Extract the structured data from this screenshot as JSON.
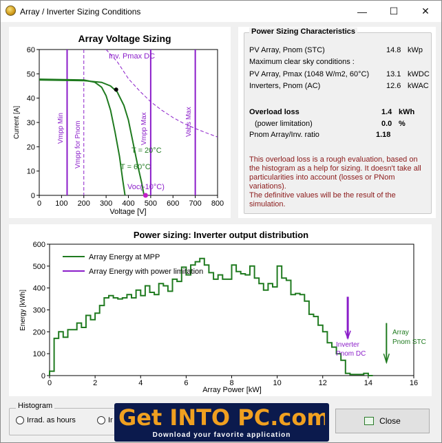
{
  "window": {
    "title": "Array / Inverter Sizing Conditions",
    "min_glyph": "—",
    "max_glyph": "☐",
    "close_glyph": "✕"
  },
  "voltage_chart": {
    "title": "Array Voltage Sizing",
    "xlabel": "Voltage [V]",
    "ylabel": "Current [A]",
    "x_ticks": [
      "0",
      "100",
      "200",
      "300",
      "400",
      "500",
      "600",
      "700",
      "800"
    ],
    "y_ticks": [
      "0",
      "10",
      "20",
      "30",
      "40",
      "50",
      "60"
    ],
    "label_inv_pmax": "Inv. Pmax DC",
    "label_vmpp_min": "Vmpp Min",
    "label_vmpp_for_pnom": "Vmpp for Pnom",
    "label_vmpp_max": "Vmpp Max",
    "label_vabs_max": "Vabs Max",
    "label_t20": "T = 20°C",
    "label_t60": "T = 60°C",
    "label_voc": "Voc(-10°C)"
  },
  "characteristics": {
    "title": "Power Sizing Characteristics",
    "pv_pnom_label": "PV Array, Pnom (STC)",
    "pv_pnom_value": "14.8",
    "pv_pnom_unit": "kWp",
    "clear_sky": "Maximum clear sky conditions :",
    "pv_pmax_label": "PV Array, Pmax (1048 W/m2, 60°C)",
    "pv_pmax_value": "13.1",
    "pv_pmax_unit": "kWDC",
    "inv_pnom_label": "Inverters, Pnom (AC)",
    "inv_pnom_value": "12.6",
    "inv_pnom_unit": "kWAC",
    "overload_label": "Overload loss",
    "overload_value": "1.4",
    "overload_unit": "kWh",
    "power_lim_label": "(power limitation)",
    "power_lim_value": "0.0",
    "power_lim_unit": "%",
    "ratio_label": "Pnom Array/Inv. ratio",
    "ratio_value": "1.18",
    "note_lines": [
      "This overload loss is a rough evaluation, based on",
      "the histogram as a help for sizing. It doesn't take all",
      "particularities into account (losses or PNom",
      "variations).",
      "The definitive values will be the result of the",
      "simulation."
    ]
  },
  "histogram_chart": {
    "title": "Power sizing: Inverter output distribution",
    "xlabel": "Array Power [kW]",
    "ylabel": "Energy [kWh]",
    "legend_mpp": "Array Energy at MPP",
    "legend_limit": "Array Energy with power limitation",
    "label_inverter": "Inverter",
    "label_pnom_dc": "Pnom DC",
    "label_array": "Array",
    "label_pnom_stc": "Pnom STC",
    "x_ticks": [
      "0",
      "2",
      "4",
      "6",
      "8",
      "10",
      "12",
      "14",
      "16"
    ],
    "y_ticks": [
      "0",
      "100",
      "200",
      "300",
      "400",
      "500",
      "600"
    ]
  },
  "chart_data": [
    {
      "type": "line",
      "title": "Array Voltage Sizing",
      "xlabel": "Voltage [V]",
      "ylabel": "Current [A]",
      "xlim": [
        0,
        800
      ],
      "ylim": [
        0,
        60
      ],
      "series": [
        {
          "name": "T = 20°C",
          "x": [
            0,
            200,
            280,
            320,
            350,
            380,
            400,
            420,
            440,
            460,
            470
          ],
          "y": [
            47.5,
            47.2,
            46.5,
            45,
            42.5,
            37,
            31,
            22,
            13,
            5,
            0
          ]
        },
        {
          "name": "T = 60°C",
          "x": [
            0,
            200,
            250,
            280,
            300,
            320,
            340,
            360,
            375,
            385
          ],
          "y": [
            47.8,
            47.5,
            46.5,
            44.5,
            41,
            35,
            26,
            16,
            6,
            0
          ]
        }
      ],
      "vertical_markers": [
        {
          "name": "Vmpp Min",
          "x": 125
        },
        {
          "name": "Vmpp for Pnom",
          "x": 200
        },
        {
          "name": "Vmpp Max",
          "x": 500
        },
        {
          "name": "Vabs Max",
          "x": 700
        }
      ],
      "inv_pmax_dc_curve": {
        "x": [
          300,
          350,
          400,
          450,
          500,
          550,
          600,
          650,
          700,
          750,
          800
        ],
        "y": [
          60,
          55,
          48,
          43,
          38.5,
          35,
          32,
          29.5,
          27.5,
          25.7,
          24
        ]
      },
      "mpp_point": {
        "x": 345,
        "y": 43.5
      },
      "voc_point": {
        "x": 477,
        "y": 0
      }
    },
    {
      "type": "line",
      "title": "Power sizing: Inverter output distribution",
      "xlabel": "Array Power [kW]",
      "ylabel": "Energy [kWh]",
      "xlim": [
        0,
        16
      ],
      "ylim": [
        0,
        600
      ],
      "series": [
        {
          "name": "Array Energy at MPP",
          "step_width": 0.2,
          "x": [
            0,
            0.2,
            0.4,
            0.6,
            0.8,
            1.0,
            1.2,
            1.4,
            1.6,
            1.8,
            2.0,
            2.2,
            2.4,
            2.6,
            2.8,
            3.0,
            3.2,
            3.4,
            3.6,
            3.8,
            4.0,
            4.2,
            4.4,
            4.6,
            4.8,
            5.0,
            5.2,
            5.4,
            5.6,
            5.8,
            6.0,
            6.2,
            6.4,
            6.6,
            6.8,
            7.0,
            7.2,
            7.4,
            7.6,
            7.8,
            8.0,
            8.2,
            8.4,
            8.6,
            8.8,
            9.0,
            9.2,
            9.4,
            9.6,
            9.8,
            10.0,
            10.2,
            10.4,
            10.6,
            10.8,
            11.0,
            11.2,
            11.4,
            11.6,
            11.8,
            12.0,
            12.2,
            12.4,
            12.6,
            12.8,
            13.0,
            13.2,
            13.4,
            13.6,
            13.8,
            14.0
          ],
          "y": [
            20,
            170,
            200,
            175,
            210,
            210,
            240,
            220,
            275,
            255,
            285,
            320,
            355,
            365,
            355,
            350,
            355,
            370,
            355,
            390,
            365,
            410,
            380,
            370,
            420,
            410,
            385,
            440,
            430,
            495,
            460,
            505,
            520,
            535,
            505,
            470,
            440,
            460,
            440,
            440,
            505,
            475,
            465,
            460,
            500,
            445,
            420,
            390,
            420,
            405,
            500,
            445,
            435,
            370,
            375,
            370,
            340,
            280,
            270,
            230,
            200,
            150,
            130,
            100,
            70,
            10,
            5,
            5,
            5,
            10,
            0
          ]
        },
        {
          "name": "Array Energy with power limitation",
          "x": [
            13.0
          ],
          "y": [
            0
          ]
        }
      ],
      "markers": [
        {
          "name": "Inverter Pnom DC",
          "x": 13.1
        },
        {
          "name": "Array Pnom STC",
          "x": 14.8
        }
      ]
    }
  ],
  "histogram_group": {
    "title": "Histogram",
    "option1": "Irrad. as hours",
    "option2": "Ir"
  },
  "close_button": {
    "label": "Close"
  },
  "watermark": {
    "text": "Get INTO PC.com",
    "tagline": "Download your favorite application"
  }
}
